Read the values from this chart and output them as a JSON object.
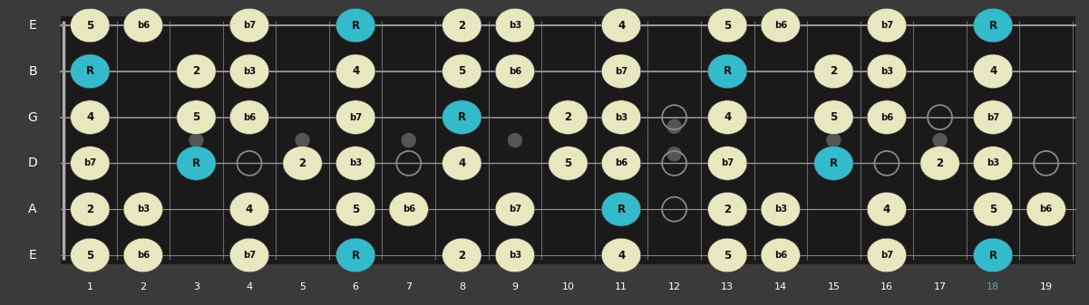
{
  "n_frets": 19,
  "n_strings": 6,
  "string_labels": [
    "E",
    "B",
    "G",
    "D",
    "A",
    "E"
  ],
  "bg_color": "#3a3a3a",
  "fretboard_color": "#1a1a1a",
  "fret_color": "#666666",
  "string_color": "#999999",
  "note_color_normal": "#e8e8c0",
  "note_color_root": "#33bbcc",
  "note_text_color": "#111111",
  "fret_marker_color": "#555555",
  "fret_markers_single": [
    3,
    5,
    7,
    9,
    15,
    17
  ],
  "fret_markers_double": [
    12
  ],
  "notes": [
    {
      "string": 0,
      "fret": 1,
      "label": "5",
      "root": false
    },
    {
      "string": 0,
      "fret": 2,
      "label": "b6",
      "root": false
    },
    {
      "string": 0,
      "fret": 4,
      "label": "b7",
      "root": false
    },
    {
      "string": 0,
      "fret": 6,
      "label": "R",
      "root": true
    },
    {
      "string": 0,
      "fret": 8,
      "label": "2",
      "root": false
    },
    {
      "string": 0,
      "fret": 9,
      "label": "b3",
      "root": false
    },
    {
      "string": 0,
      "fret": 11,
      "label": "4",
      "root": false
    },
    {
      "string": 0,
      "fret": 13,
      "label": "5",
      "root": false
    },
    {
      "string": 0,
      "fret": 14,
      "label": "b6",
      "root": false
    },
    {
      "string": 0,
      "fret": 16,
      "label": "b7",
      "root": false
    },
    {
      "string": 0,
      "fret": 18,
      "label": "R",
      "root": true
    },
    {
      "string": 1,
      "fret": 1,
      "label": "R",
      "root": true
    },
    {
      "string": 1,
      "fret": 3,
      "label": "2",
      "root": false
    },
    {
      "string": 1,
      "fret": 4,
      "label": "b3",
      "root": false
    },
    {
      "string": 1,
      "fret": 6,
      "label": "4",
      "root": false
    },
    {
      "string": 1,
      "fret": 8,
      "label": "5",
      "root": false
    },
    {
      "string": 1,
      "fret": 9,
      "label": "b6",
      "root": false
    },
    {
      "string": 1,
      "fret": 11,
      "label": "b7",
      "root": false
    },
    {
      "string": 1,
      "fret": 13,
      "label": "R",
      "root": true
    },
    {
      "string": 1,
      "fret": 15,
      "label": "2",
      "root": false
    },
    {
      "string": 1,
      "fret": 16,
      "label": "b3",
      "root": false
    },
    {
      "string": 1,
      "fret": 18,
      "label": "4",
      "root": false
    },
    {
      "string": 2,
      "fret": 1,
      "label": "4",
      "root": false
    },
    {
      "string": 2,
      "fret": 3,
      "label": "5",
      "root": false
    },
    {
      "string": 2,
      "fret": 4,
      "label": "b6",
      "root": false
    },
    {
      "string": 2,
      "fret": 6,
      "label": "b7",
      "root": false
    },
    {
      "string": 2,
      "fret": 8,
      "label": "R",
      "root": true
    },
    {
      "string": 2,
      "fret": 10,
      "label": "2",
      "root": false
    },
    {
      "string": 2,
      "fret": 11,
      "label": "b3",
      "root": false
    },
    {
      "string": 2,
      "fret": 13,
      "label": "4",
      "root": false
    },
    {
      "string": 2,
      "fret": 15,
      "label": "5",
      "root": false
    },
    {
      "string": 2,
      "fret": 16,
      "label": "b6",
      "root": false
    },
    {
      "string": 2,
      "fret": 18,
      "label": "b7",
      "root": false
    },
    {
      "string": 3,
      "fret": 1,
      "label": "b7",
      "root": false
    },
    {
      "string": 3,
      "fret": 3,
      "label": "R",
      "root": true
    },
    {
      "string": 3,
      "fret": 5,
      "label": "2",
      "root": false
    },
    {
      "string": 3,
      "fret": 6,
      "label": "b3",
      "root": false
    },
    {
      "string": 3,
      "fret": 8,
      "label": "4",
      "root": false
    },
    {
      "string": 3,
      "fret": 10,
      "label": "5",
      "root": false
    },
    {
      "string": 3,
      "fret": 11,
      "label": "b6",
      "root": false
    },
    {
      "string": 3,
      "fret": 13,
      "label": "b7",
      "root": false
    },
    {
      "string": 3,
      "fret": 15,
      "label": "R",
      "root": true
    },
    {
      "string": 3,
      "fret": 17,
      "label": "2",
      "root": false
    },
    {
      "string": 3,
      "fret": 18,
      "label": "b3",
      "root": false
    },
    {
      "string": 4,
      "fret": 1,
      "label": "2",
      "root": false
    },
    {
      "string": 4,
      "fret": 2,
      "label": "b3",
      "root": false
    },
    {
      "string": 4,
      "fret": 4,
      "label": "4",
      "root": false
    },
    {
      "string": 4,
      "fret": 6,
      "label": "5",
      "root": false
    },
    {
      "string": 4,
      "fret": 7,
      "label": "b6",
      "root": false
    },
    {
      "string": 4,
      "fret": 9,
      "label": "b7",
      "root": false
    },
    {
      "string": 4,
      "fret": 11,
      "label": "R",
      "root": true
    },
    {
      "string": 4,
      "fret": 13,
      "label": "2",
      "root": false
    },
    {
      "string": 4,
      "fret": 14,
      "label": "b3",
      "root": false
    },
    {
      "string": 4,
      "fret": 16,
      "label": "4",
      "root": false
    },
    {
      "string": 4,
      "fret": 18,
      "label": "5",
      "root": false
    },
    {
      "string": 4,
      "fret": 19,
      "label": "b6",
      "root": false
    },
    {
      "string": 5,
      "fret": 1,
      "label": "5",
      "root": false
    },
    {
      "string": 5,
      "fret": 2,
      "label": "b6",
      "root": false
    },
    {
      "string": 5,
      "fret": 4,
      "label": "b7",
      "root": false
    },
    {
      "string": 5,
      "fret": 6,
      "label": "R",
      "root": true
    },
    {
      "string": 5,
      "fret": 8,
      "label": "2",
      "root": false
    },
    {
      "string": 5,
      "fret": 9,
      "label": "b3",
      "root": false
    },
    {
      "string": 5,
      "fret": 11,
      "label": "4",
      "root": false
    },
    {
      "string": 5,
      "fret": 13,
      "label": "5",
      "root": false
    },
    {
      "string": 5,
      "fret": 14,
      "label": "b6",
      "root": false
    },
    {
      "string": 5,
      "fret": 16,
      "label": "b7",
      "root": false
    },
    {
      "string": 5,
      "fret": 18,
      "label": "R",
      "root": true
    }
  ],
  "open_circles": [
    {
      "string": 3,
      "fret": 4
    },
    {
      "string": 3,
      "fret": 7
    },
    {
      "string": 3,
      "fret": 12
    },
    {
      "string": 3,
      "fret": 16
    },
    {
      "string": 3,
      "fret": 19
    },
    {
      "string": 2,
      "fret": 12
    },
    {
      "string": 2,
      "fret": 17
    },
    {
      "string": 4,
      "fret": 12
    }
  ]
}
